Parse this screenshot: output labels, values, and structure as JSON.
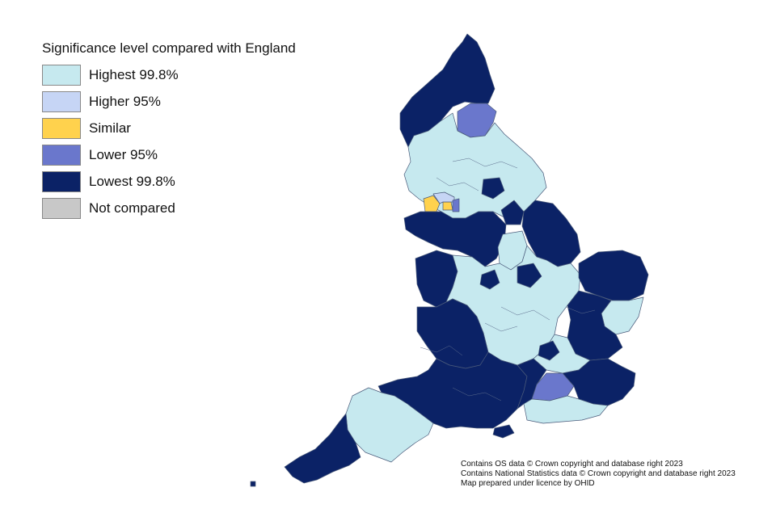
{
  "legend": {
    "title": "Significance level compared with England",
    "items": [
      {
        "label": "Highest 99.8%",
        "color": "#c6e9ef"
      },
      {
        "label": "Higher 95%",
        "color": "#c6d5f5"
      },
      {
        "label": "Similar",
        "color": "#ffd24d"
      },
      {
        "label": "Lower 95%",
        "color": "#6a77cc"
      },
      {
        "label": "Lowest 99.8%",
        "color": "#0b2266"
      },
      {
        "label": "Not compared",
        "color": "#c8c8c8"
      }
    ]
  },
  "credits": {
    "line1": "Contains OS data © Crown copyright and database right 2023",
    "line2": "Contains National Statistics data © Crown copyright and database right 2023",
    "line3": "Map prepared under licence by OHID"
  }
}
